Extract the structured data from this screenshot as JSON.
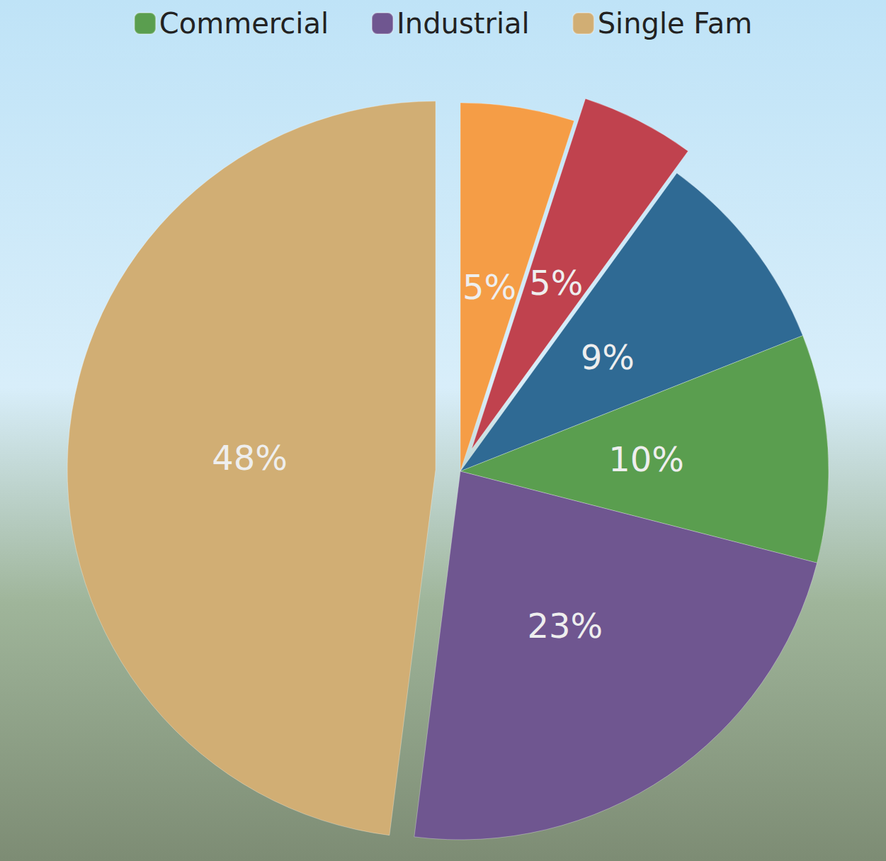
{
  "chart_data": {
    "type": "pie",
    "categories": [
      null,
      null,
      null,
      "Commercial",
      "Industrial",
      "Single Fam"
    ],
    "values": [
      5,
      5,
      9,
      10,
      23,
      48
    ],
    "value_labels": [
      "5%",
      "5%",
      "9%",
      "10%",
      "23%",
      "48%"
    ],
    "colors": [
      "#f59d46",
      "#c0424e",
      "#2f6a94",
      "#5a9e4f",
      "#6f5690",
      "#d1ae74"
    ],
    "legend": "top",
    "data_labels": true
  }
}
